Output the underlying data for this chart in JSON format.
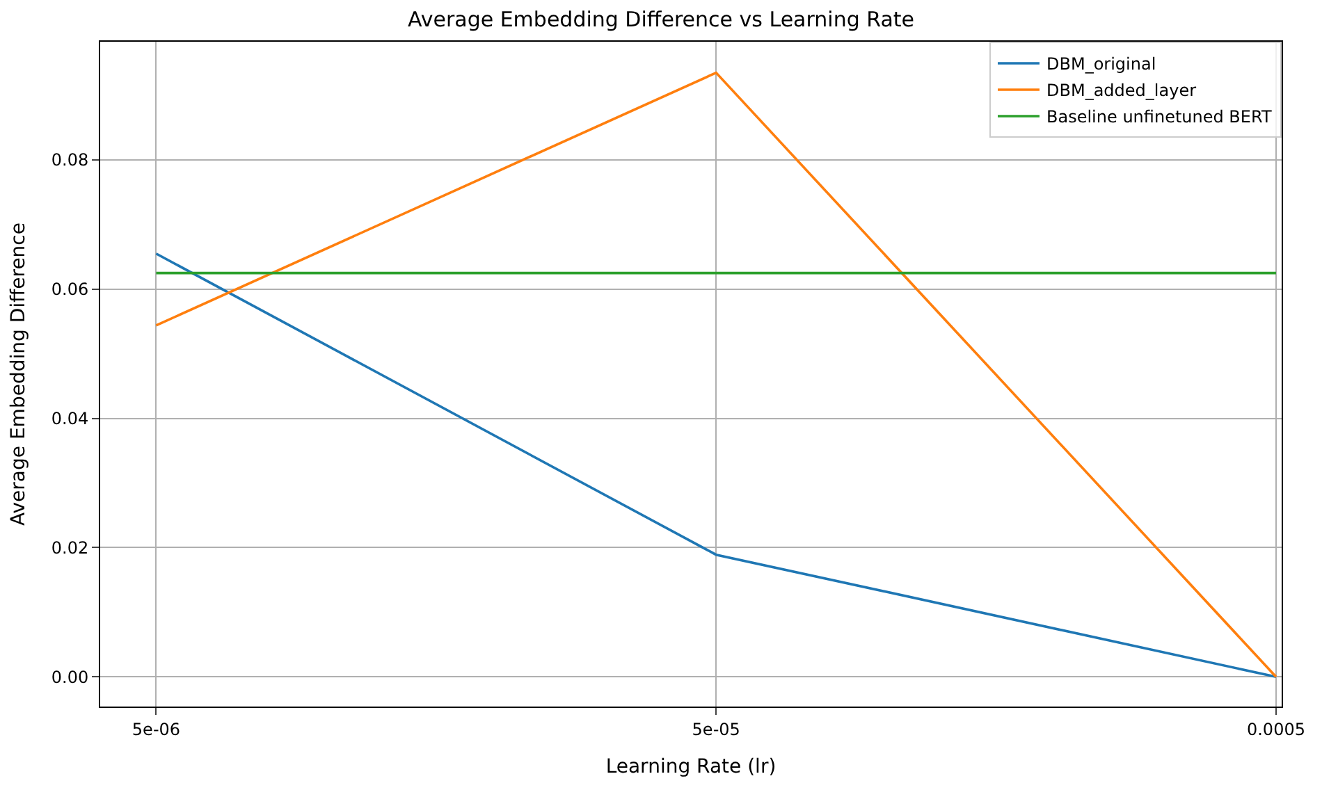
{
  "chart_data": {
    "type": "line",
    "title": "Average Embedding Difference vs Learning Rate",
    "xlabel": "Learning Rate (lr)",
    "ylabel": "Average Embedding Difference",
    "categories": [
      "5e-06",
      "5e-05",
      "0.0005"
    ],
    "series": [
      {
        "name": "DBM_original",
        "color": "#1f77b4",
        "values": [
          0.0655,
          0.0189,
          0.0
        ]
      },
      {
        "name": "DBM_added_layer",
        "color": "#ff7f0e",
        "values": [
          0.0544,
          0.0935,
          0.0
        ]
      },
      {
        "name": "Baseline unfinetuned BERT",
        "color": "#2ca02c",
        "values": [
          0.0625,
          0.0625,
          0.0625
        ]
      }
    ],
    "ylim": [
      -0.0046,
      0.0983
    ],
    "yticks": [
      {
        "value": 0,
        "label": "0.00"
      },
      {
        "value": 0.02,
        "label": "0.02"
      },
      {
        "value": 0.04,
        "label": "0.04"
      },
      {
        "value": 0.06,
        "label": "0.06"
      },
      {
        "value": 0.08,
        "label": "0.08"
      }
    ],
    "grid": true,
    "legend": "top right",
    "line_style": "solid",
    "marker": "none"
  }
}
